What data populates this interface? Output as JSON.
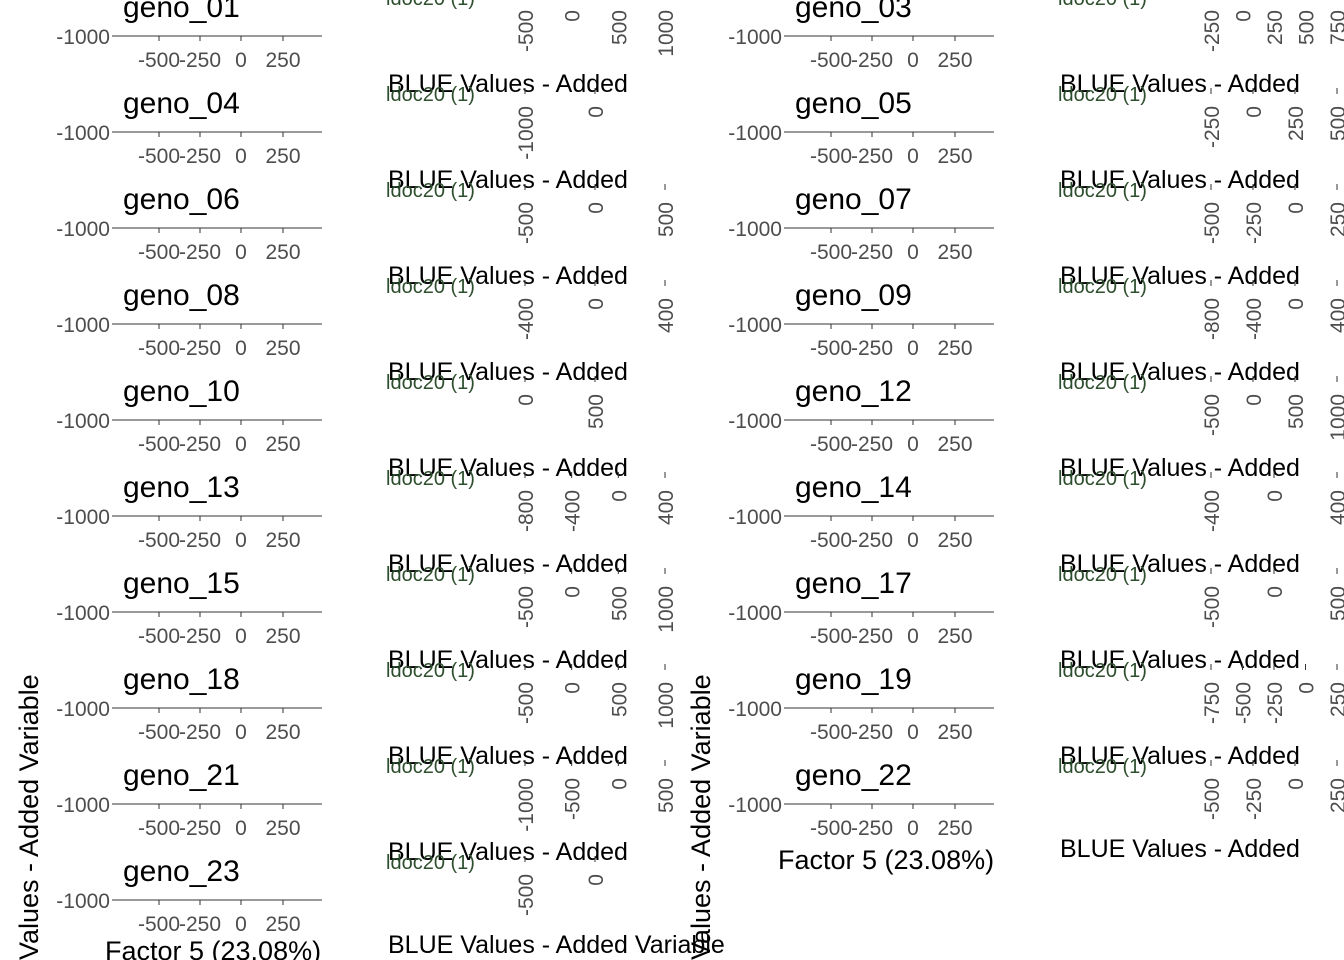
{
  "chart_data": {
    "type": "scatter",
    "axis_title_x": "Factor 5 (23.08%)",
    "axis_title_y": "Values - Added Variable",
    "right_plot_title": "BLUE Values - Added Variable",
    "right_plot_title_short": "BLUE Values - Added",
    "legend_label": "ldoc20 (1)",
    "y_tick": "-1000",
    "x_ticks": [
      "-500",
      "-250",
      "0",
      "250"
    ],
    "columns": [
      {
        "panels": [
          {
            "title": "geno_01",
            "right_ticks": [
              "-500",
              "0",
              "500",
              "1000"
            ]
          },
          {
            "title": "geno_04",
            "right_ticks": [
              "-1000",
              "0"
            ]
          },
          {
            "title": "geno_06",
            "right_ticks": [
              "-500",
              "0",
              "500"
            ]
          },
          {
            "title": "geno_08",
            "right_ticks": [
              "-400",
              "0",
              "400"
            ]
          },
          {
            "title": "geno_10",
            "right_ticks": [
              "0",
              "500"
            ]
          },
          {
            "title": "geno_13",
            "right_ticks": [
              "-800",
              "-400",
              "0",
              "400"
            ]
          },
          {
            "title": "geno_15",
            "right_ticks": [
              "-500",
              "0",
              "500",
              "1000"
            ]
          },
          {
            "title": "geno_18",
            "right_ticks": [
              "-500",
              "0",
              "500",
              "1000"
            ]
          },
          {
            "title": "geno_21",
            "right_ticks": [
              "-1000",
              "-500",
              "0",
              "500"
            ]
          },
          {
            "title": "geno_23",
            "right_ticks": [
              "-500",
              "0"
            ]
          }
        ]
      },
      {
        "panels": [
          {
            "title": "geno_03",
            "right_ticks": [
              "-250",
              "0",
              "250",
              "500",
              "750"
            ]
          },
          {
            "title": "geno_05",
            "right_ticks": [
              "-250",
              "0",
              "250",
              "500"
            ]
          },
          {
            "title": "geno_07",
            "right_ticks": [
              "-500",
              "-250",
              "0",
              "250"
            ]
          },
          {
            "title": "geno_09",
            "right_ticks": [
              "-800",
              "-400",
              "0",
              "400"
            ]
          },
          {
            "title": "geno_12",
            "right_ticks": [
              "-500",
              "0",
              "500",
              "1000"
            ]
          },
          {
            "title": "geno_14",
            "right_ticks": [
              "-400",
              "0",
              "400"
            ]
          },
          {
            "title": "geno_17",
            "right_ticks": [
              "-500",
              "0",
              "500"
            ]
          },
          {
            "title": "geno_19",
            "right_ticks": [
              "-750",
              "-500",
              "-250",
              "0",
              "250"
            ]
          },
          {
            "title": "geno_22",
            "right_ticks": [
              "-500",
              "-250",
              "0",
              "250"
            ]
          }
        ]
      }
    ]
  }
}
